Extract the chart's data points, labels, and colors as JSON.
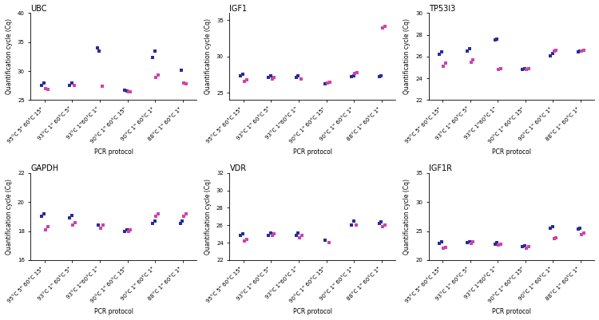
{
  "panels": [
    {
      "title": "UBC",
      "ylim": [
        25,
        40
      ],
      "yticks": [
        25,
        30,
        35,
        40
      ],
      "groups": [
        {
          "label": "95°C 5\" 60°C 15\"",
          "blue": [
            27.5,
            27.9
          ],
          "pink": [
            27.0,
            26.8
          ]
        },
        {
          "label": "93°C 1\" 60°C 5\"",
          "blue": [
            27.6,
            27.9
          ],
          "pink": [
            27.6
          ]
        },
        {
          "label": "93°C 1\"60°C 1\"",
          "blue": [
            34.0,
            33.5
          ],
          "pink": [
            27.4
          ]
        },
        {
          "label": "90°C 1\" 60°C 15\"",
          "blue": [
            26.7,
            26.6
          ],
          "pink": [
            26.5,
            26.4
          ]
        },
        {
          "label": "90°C 1\" 60°C 1\"",
          "blue": [
            32.4,
            33.4
          ],
          "pink": [
            28.9,
            29.3
          ]
        },
        {
          "label": "88°C 1\" 60°C 1\"",
          "blue": [
            30.1
          ],
          "pink": [
            28.0,
            27.8
          ]
        }
      ]
    },
    {
      "title": "IGF1",
      "ylim": [
        24,
        36
      ],
      "yticks": [
        25,
        30,
        35
      ],
      "groups": [
        {
          "label": "95°C 5\" 60°C 15\"",
          "blue": [
            27.3,
            27.6
          ],
          "pink": [
            26.6,
            26.8
          ]
        },
        {
          "label": "93°C 1\" 60°C 5\"",
          "blue": [
            27.1,
            27.3
          ],
          "pink": [
            26.9,
            27.1
          ]
        },
        {
          "label": "93°C 1\"60°C 1\"",
          "blue": [
            27.1,
            27.4
          ],
          "pink": [
            26.9
          ]
        },
        {
          "label": "90°C 1\" 60°C 15\"",
          "blue": [
            26.2
          ],
          "pink": [
            26.4,
            26.5
          ]
        },
        {
          "label": "90°C 1\" 60°C 1\"",
          "blue": [
            27.2,
            27.4
          ],
          "pink": [
            27.7,
            27.8
          ]
        },
        {
          "label": "88°C 1\" 60°C 1\"",
          "blue": [
            27.2,
            27.4
          ],
          "pink": [
            33.9,
            34.2
          ]
        }
      ]
    },
    {
      "title": "TP53I3",
      "ylim": [
        22,
        30
      ],
      "yticks": [
        22,
        24,
        26,
        28,
        30
      ],
      "groups": [
        {
          "label": "95°C 5\" 60°C 15\"",
          "blue": [
            26.2,
            26.4
          ],
          "pink": [
            25.1,
            25.4
          ]
        },
        {
          "label": "93°C 1\" 60°C 5\"",
          "blue": [
            26.5,
            26.7
          ],
          "pink": [
            25.5,
            25.7
          ]
        },
        {
          "label": "93°C 1\"60°C 1\"",
          "blue": [
            27.5,
            27.6
          ],
          "pink": [
            24.8,
            24.9
          ]
        },
        {
          "label": "90°C 1\" 60°C 15\"",
          "blue": [
            24.8,
            24.9
          ],
          "pink": [
            24.8,
            24.9
          ]
        },
        {
          "label": "90°C 1\" 60°C 1\"",
          "blue": [
            26.1,
            26.3
          ],
          "pink": [
            26.5,
            26.6
          ]
        },
        {
          "label": "88°C 1\" 60°C 1\"",
          "blue": [
            26.4,
            26.5
          ],
          "pink": [
            26.5,
            26.6
          ]
        }
      ]
    },
    {
      "title": "GAPDH",
      "ylim": [
        16,
        22
      ],
      "yticks": [
        16,
        18,
        20,
        22
      ],
      "groups": [
        {
          "label": "95°C 5\" 60°C 15\"",
          "blue": [
            19.0,
            19.2
          ],
          "pink": [
            18.1,
            18.3
          ]
        },
        {
          "label": "93°C 1\" 60°C 5\"",
          "blue": [
            18.9,
            19.1
          ],
          "pink": [
            18.4,
            18.6
          ]
        },
        {
          "label": "93°C 1\"60°C 1\"",
          "blue": [
            18.4
          ],
          "pink": [
            18.2,
            18.4
          ]
        },
        {
          "label": "90°C 1\" 60°C 15\"",
          "blue": [
            18.0,
            18.1
          ],
          "pink": [
            18.0,
            18.1
          ]
        },
        {
          "label": "90°C 1\" 60°C 1\"",
          "blue": [
            18.5,
            18.7
          ],
          "pink": [
            19.0,
            19.2
          ]
        },
        {
          "label": "88°C 1\" 60°C 1\"",
          "blue": [
            18.5,
            18.7
          ],
          "pink": [
            19.0,
            19.2
          ]
        }
      ]
    },
    {
      "title": "VDR",
      "ylim": [
        22,
        32
      ],
      "yticks": [
        22,
        24,
        26,
        28,
        30,
        32
      ],
      "groups": [
        {
          "label": "95°C 5\" 60°C 15\"",
          "blue": [
            24.8,
            25.0
          ],
          "pink": [
            24.2,
            24.4
          ]
        },
        {
          "label": "93°C 1\" 60°C 5\"",
          "blue": [
            24.8,
            25.1
          ],
          "pink": [
            24.8,
            25.0
          ]
        },
        {
          "label": "93°C 1\"60°C 1\"",
          "blue": [
            24.8,
            25.1
          ],
          "pink": [
            24.6,
            24.8
          ]
        },
        {
          "label": "90°C 1\" 60°C 15\"",
          "blue": [
            24.3
          ],
          "pink": [
            24.0
          ]
        },
        {
          "label": "90°C 1\" 60°C 1\"",
          "blue": [
            26.0,
            26.5
          ],
          "pink": [
            26.0
          ]
        },
        {
          "label": "88°C 1\" 60°C 1\"",
          "blue": [
            26.2,
            26.4
          ],
          "pink": [
            25.8,
            26.0
          ]
        }
      ]
    },
    {
      "title": "IGF1R",
      "ylim": [
        20,
        35
      ],
      "yticks": [
        20,
        25,
        30,
        35
      ],
      "groups": [
        {
          "label": "95°C 5\" 60°C 15\"",
          "blue": [
            22.9,
            23.1
          ],
          "pink": [
            22.0,
            22.2
          ]
        },
        {
          "label": "93°C 1\" 60°C 5\"",
          "blue": [
            23.0,
            23.2
          ],
          "pink": [
            22.9,
            23.1
          ]
        },
        {
          "label": "93°C 1\"60°C 1\"",
          "blue": [
            22.8,
            23.0
          ],
          "pink": [
            22.6,
            22.8
          ]
        },
        {
          "label": "90°C 1\" 60°C 15\"",
          "blue": [
            22.3,
            22.5
          ],
          "pink": [
            22.1,
            22.3
          ]
        },
        {
          "label": "90°C 1\" 60°C 1\"",
          "blue": [
            25.5,
            25.7
          ],
          "pink": [
            23.7,
            23.9
          ]
        },
        {
          "label": "88°C 1\" 60°C 1\"",
          "blue": [
            25.3,
            25.5
          ],
          "pink": [
            24.4,
            24.6
          ]
        }
      ]
    }
  ],
  "blue_color": "#2b2b99",
  "pink_color": "#cc44aa",
  "marker_size": 3.0,
  "ylabel": "Quantification cycle (Cq)",
  "xlabel": "PCR protocol",
  "tick_fontsize": 5.0,
  "label_fontsize": 5.5,
  "title_fontsize": 7.0
}
